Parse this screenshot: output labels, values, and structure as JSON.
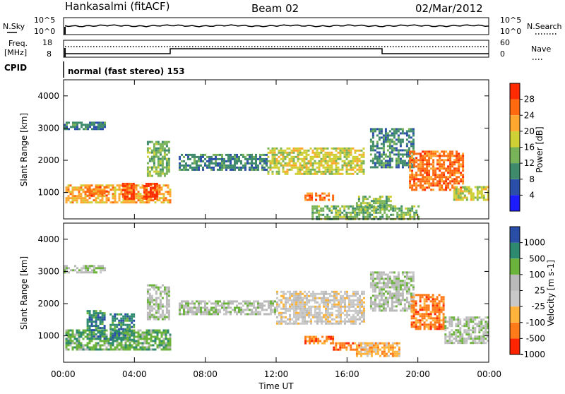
{
  "header": {
    "station": "Hankasalmi (fitACF)",
    "beam": "Beam 02",
    "date": "02/Mar/2012"
  },
  "aux": {
    "nsky_label": "N.Sky",
    "nsearch_label": "N.Search",
    "freq_label_1": "Freq.",
    "freq_label_2": "[MHz]",
    "nave_label": "Nave",
    "cpid_label": "CPID",
    "cpid_value": "normal (fast stereo) 153",
    "noise_ticks": [
      "10^5",
      "10^0"
    ],
    "freq_ticks": [
      "18",
      "8"
    ],
    "nave_ticks": [
      "60",
      "0"
    ]
  },
  "chart_data": [
    {
      "type": "heatmap",
      "title": "",
      "xlabel": "Time UT",
      "ylabel": "Slant Range [km]",
      "x_ticks": [
        "00:00",
        "04:00",
        "08:00",
        "12:00",
        "16:00",
        "20:00",
        "00:00"
      ],
      "y_ticks": [
        "1000",
        "2000",
        "3000",
        "4000"
      ],
      "xlim_hours": [
        0,
        24
      ],
      "ylim": [
        180,
        4500
      ],
      "colorbar": {
        "label": "Power [dB]",
        "ticks": [
          "4",
          "8",
          "12",
          "16",
          "20",
          "24",
          "28"
        ],
        "colors": [
          "#1c1cff",
          "#2b4fa9",
          "#3e8a6a",
          "#78b35a",
          "#cfcf36",
          "#ffa72e",
          "#ff6a10",
          "#ff2a00"
        ]
      },
      "regions": [
        {
          "t0": 0.0,
          "t1": 2.3,
          "r0": 2950,
          "r1": 3200,
          "level": 2
        },
        {
          "t0": 0.1,
          "t1": 6.0,
          "r0": 700,
          "r1": 1250,
          "level": 5
        },
        {
          "t0": 1.3,
          "t1": 2.4,
          "r0": 900,
          "r1": 1200,
          "level": 6
        },
        {
          "t0": 3.3,
          "t1": 3.9,
          "r0": 800,
          "r1": 1300,
          "level": 7
        },
        {
          "t0": 4.5,
          "t1": 5.3,
          "r0": 800,
          "r1": 1300,
          "level": 7
        },
        {
          "t0": 4.7,
          "t1": 6.0,
          "r0": 1500,
          "r1": 2600,
          "level": 3
        },
        {
          "t0": 6.5,
          "t1": 11.5,
          "r0": 1700,
          "r1": 2200,
          "level": 2
        },
        {
          "t0": 11.5,
          "t1": 17.0,
          "r0": 1600,
          "r1": 2400,
          "level": 4
        },
        {
          "t0": 13.6,
          "t1": 15.2,
          "r0": 800,
          "r1": 1000,
          "level": 6
        },
        {
          "t0": 14.0,
          "t1": 20.0,
          "r0": 200,
          "r1": 600,
          "level": 3
        },
        {
          "t0": 16.5,
          "t1": 18.5,
          "r0": 500,
          "r1": 900,
          "level": 3
        },
        {
          "t0": 17.3,
          "t1": 19.7,
          "r0": 1800,
          "r1": 3000,
          "level": 2
        },
        {
          "t0": 19.5,
          "t1": 22.5,
          "r0": 1100,
          "r1": 2300,
          "level": 6
        },
        {
          "t0": 22.0,
          "t1": 24.0,
          "r0": 800,
          "r1": 1200,
          "level": 4
        }
      ]
    },
    {
      "type": "heatmap",
      "title": "",
      "xlabel": "Time UT",
      "ylabel": "Slant Range [km]",
      "x_ticks": [
        "00:00",
        "04:00",
        "08:00",
        "12:00",
        "16:00",
        "20:00",
        "00:00"
      ],
      "y_ticks": [
        "1000",
        "2000",
        "3000",
        "4000"
      ],
      "xlim_hours": [
        0,
        24
      ],
      "ylim": [
        180,
        4500
      ],
      "colorbar": {
        "label": "Velocity [m s-1]",
        "ticks": [
          "1000",
          "500",
          "100",
          "25",
          "-25",
          "-100",
          "-500",
          "-1000"
        ],
        "colors": [
          "#2a4ea8",
          "#2e8a6e",
          "#6cb33c",
          "#b9b9b9",
          "#c8c8c8",
          "#ffb33a",
          "#ff7a18",
          "#ff2400"
        ]
      },
      "regions": [
        {
          "t0": 0.0,
          "t1": 2.3,
          "r0": 2950,
          "r1": 3200,
          "level": 3
        },
        {
          "t0": 0.1,
          "t1": 6.0,
          "r0": 600,
          "r1": 1200,
          "level": 2
        },
        {
          "t0": 1.3,
          "t1": 2.3,
          "r0": 900,
          "r1": 1800,
          "level": 1
        },
        {
          "t0": 2.6,
          "t1": 4.0,
          "r0": 900,
          "r1": 1700,
          "level": 1
        },
        {
          "t0": 4.7,
          "t1": 6.0,
          "r0": 1500,
          "r1": 2600,
          "level": 3
        },
        {
          "t0": 6.5,
          "t1": 12.0,
          "r0": 1700,
          "r1": 2100,
          "level": 3
        },
        {
          "t0": 12.0,
          "t1": 17.0,
          "r0": 1400,
          "r1": 2400,
          "level": 4
        },
        {
          "t0": 13.6,
          "t1": 15.2,
          "r0": 800,
          "r1": 1000,
          "level": 6
        },
        {
          "t0": 15.2,
          "t1": 17.4,
          "r0": 600,
          "r1": 800,
          "level": 6
        },
        {
          "t0": 16.5,
          "t1": 19.0,
          "r0": 350,
          "r1": 800,
          "level": 5
        },
        {
          "t0": 17.3,
          "t1": 19.7,
          "r0": 1800,
          "r1": 3000,
          "level": 3
        },
        {
          "t0": 19.6,
          "t1": 21.5,
          "r0": 1200,
          "r1": 2300,
          "level": 6
        },
        {
          "t0": 21.5,
          "t1": 24.0,
          "r0": 800,
          "r1": 1600,
          "level": 3
        }
      ]
    }
  ]
}
